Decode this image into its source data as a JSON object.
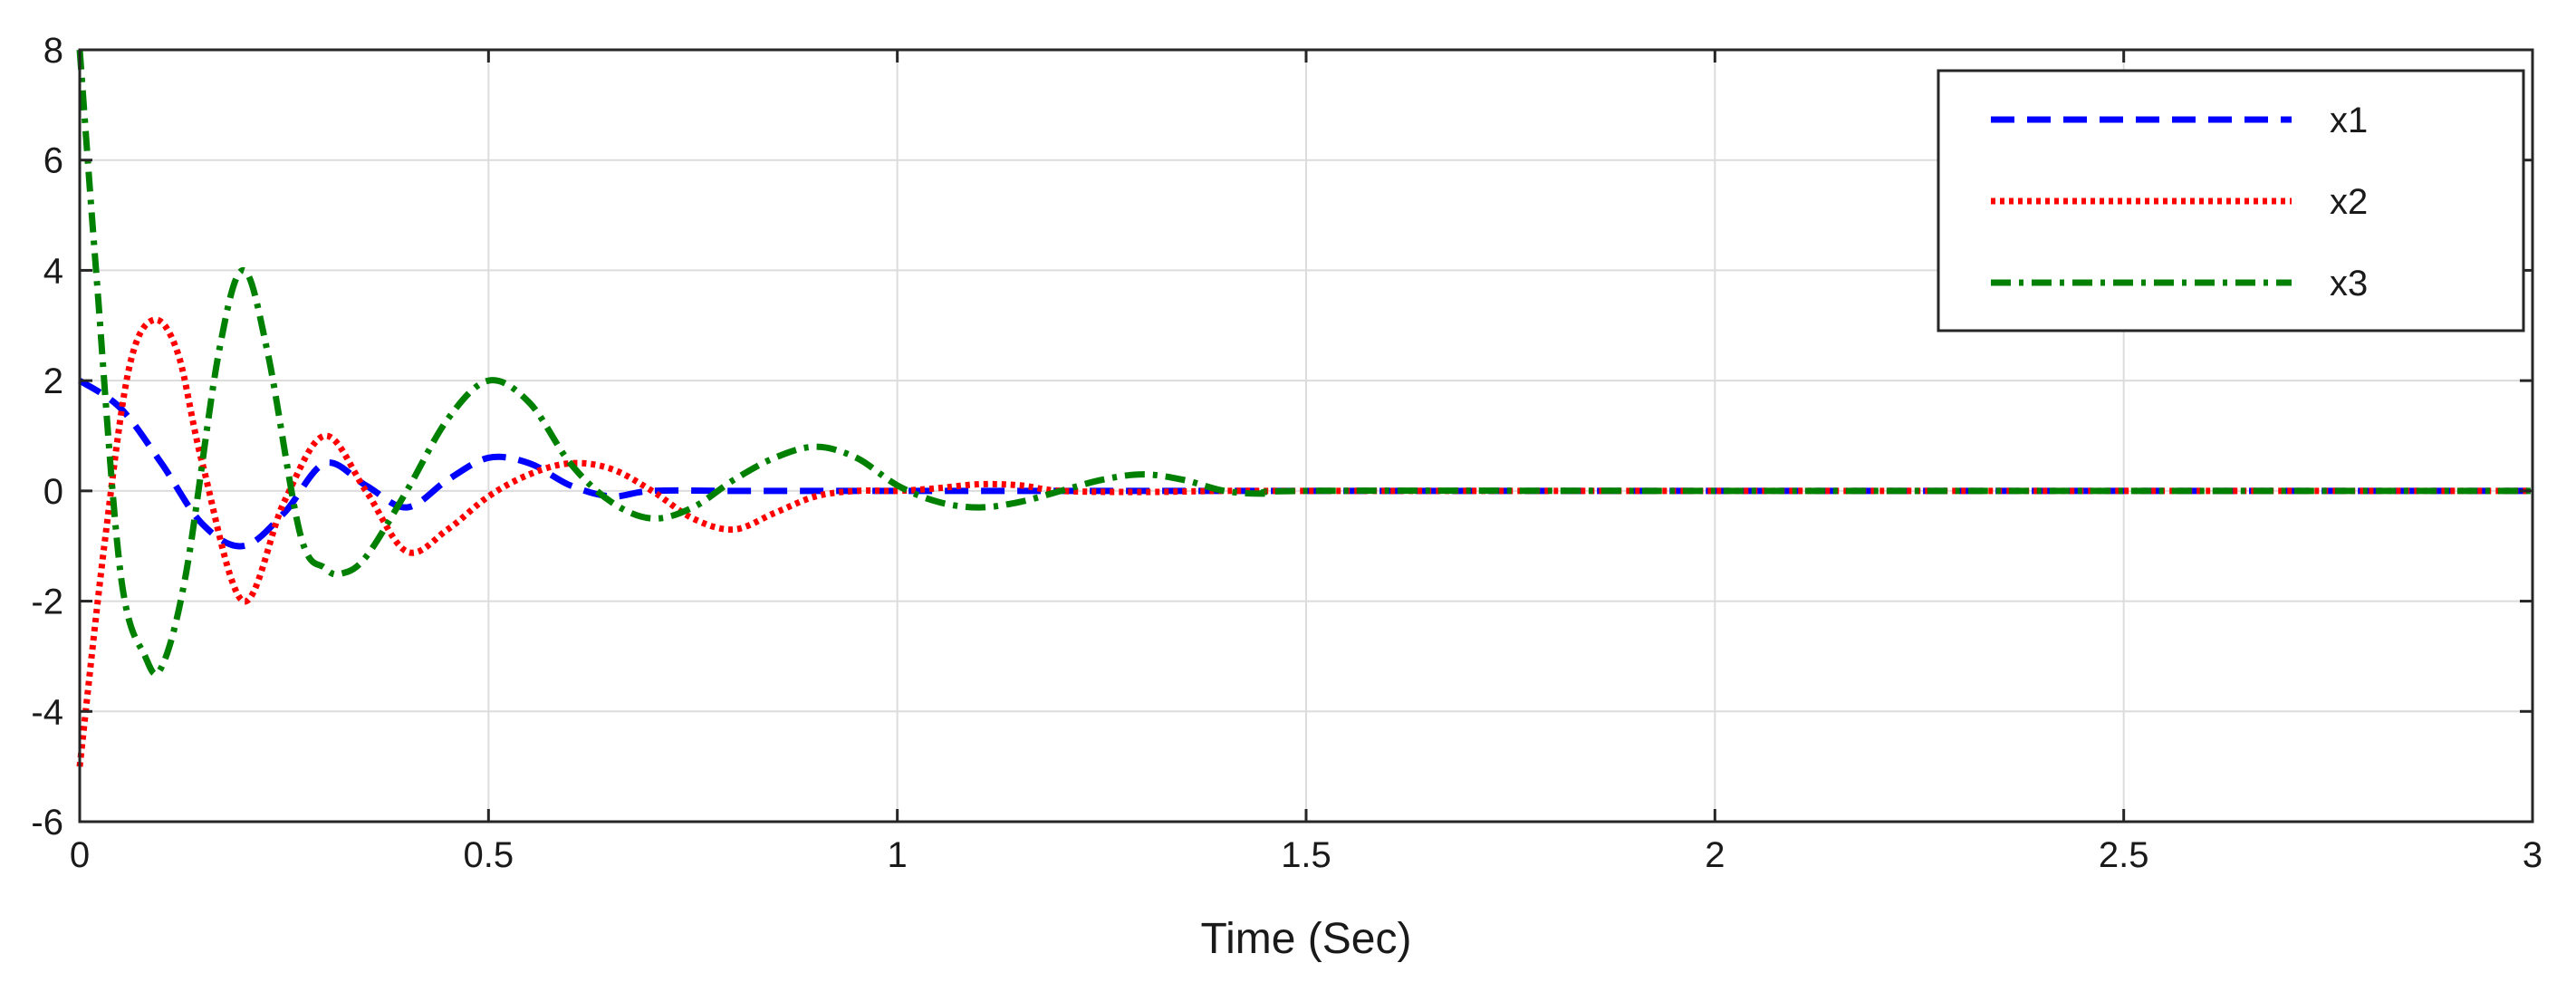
{
  "chart_data": {
    "type": "line",
    "title": "",
    "xlabel": "Time (Sec)",
    "ylabel": "",
    "xlim": [
      0,
      3
    ],
    "ylim": [
      -6,
      8
    ],
    "xticks": [
      0,
      0.5,
      1,
      1.5,
      2,
      2.5,
      3
    ],
    "xtick_labels": [
      "0",
      "0.5",
      "1",
      "1.5",
      "2",
      "2.5",
      "3"
    ],
    "yticks": [
      -6,
      -4,
      -2,
      0,
      2,
      4,
      6,
      8
    ],
    "ytick_labels": [
      "-6",
      "-4",
      "-2",
      "0",
      "2",
      "4",
      "6",
      "8"
    ],
    "grid": true,
    "legend_position": "top-right",
    "series": [
      {
        "name": "x1",
        "color": "#0000ff",
        "line_style": "dashed",
        "x": [
          0,
          0.05,
          0.1,
          0.15,
          0.2,
          0.25,
          0.3,
          0.35,
          0.4,
          0.45,
          0.5,
          0.55,
          0.6,
          0.65,
          0.7,
          0.8,
          0.9,
          1.0,
          1.1,
          1.2,
          1.3,
          1.4,
          1.5,
          2.0,
          2.5,
          3.0
        ],
        "y": [
          2.0,
          1.5,
          0.5,
          -0.6,
          -1.0,
          -0.4,
          0.5,
          0.1,
          -0.3,
          0.2,
          0.6,
          0.5,
          0.1,
          -0.1,
          0.0,
          0.0,
          0.0,
          0.0,
          0.0,
          0.0,
          0.0,
          0.0,
          0.0,
          0.0,
          0.0,
          0.0
        ]
      },
      {
        "name": "x2",
        "color": "#ff0000",
        "line_style": "dotted",
        "x": [
          0,
          0.03,
          0.06,
          0.09,
          0.12,
          0.15,
          0.2,
          0.25,
          0.3,
          0.35,
          0.4,
          0.45,
          0.5,
          0.55,
          0.6,
          0.65,
          0.7,
          0.75,
          0.8,
          0.85,
          0.9,
          0.95,
          1.0,
          1.05,
          1.1,
          1.15,
          1.2,
          1.3,
          1.4,
          1.5,
          2.0,
          2.5,
          3.0
        ],
        "y": [
          -5.0,
          -1.0,
          2.2,
          3.1,
          2.5,
          0.5,
          -2.0,
          -0.2,
          1.0,
          0.0,
          -1.1,
          -0.7,
          -0.1,
          0.3,
          0.5,
          0.4,
          0.0,
          -0.5,
          -0.7,
          -0.4,
          -0.1,
          0.0,
          0.0,
          0.05,
          0.12,
          0.1,
          0.0,
          -0.02,
          0.0,
          0.0,
          0.0,
          0.0,
          0.0
        ]
      },
      {
        "name": "x3",
        "color": "#008000",
        "line_style": "dashdot",
        "x": [
          0,
          0.02,
          0.05,
          0.08,
          0.1,
          0.13,
          0.17,
          0.2,
          0.23,
          0.27,
          0.3,
          0.32,
          0.35,
          0.4,
          0.45,
          0.5,
          0.55,
          0.6,
          0.65,
          0.7,
          0.75,
          0.8,
          0.85,
          0.9,
          0.95,
          1.0,
          1.05,
          1.1,
          1.15,
          1.2,
          1.25,
          1.3,
          1.35,
          1.4,
          1.45,
          1.5,
          2.0,
          2.5,
          3.0
        ],
        "y": [
          8.0,
          4.0,
          -1.5,
          -3.0,
          -3.2,
          -1.5,
          2.5,
          4.0,
          2.5,
          -0.8,
          -1.4,
          -1.5,
          -1.2,
          0.0,
          1.3,
          2.0,
          1.6,
          0.5,
          -0.2,
          -0.5,
          -0.3,
          0.2,
          0.6,
          0.8,
          0.6,
          0.1,
          -0.2,
          -0.3,
          -0.2,
          0.0,
          0.2,
          0.3,
          0.2,
          0.0,
          -0.05,
          0.0,
          0.0,
          0.0,
          0.0
        ]
      }
    ]
  }
}
